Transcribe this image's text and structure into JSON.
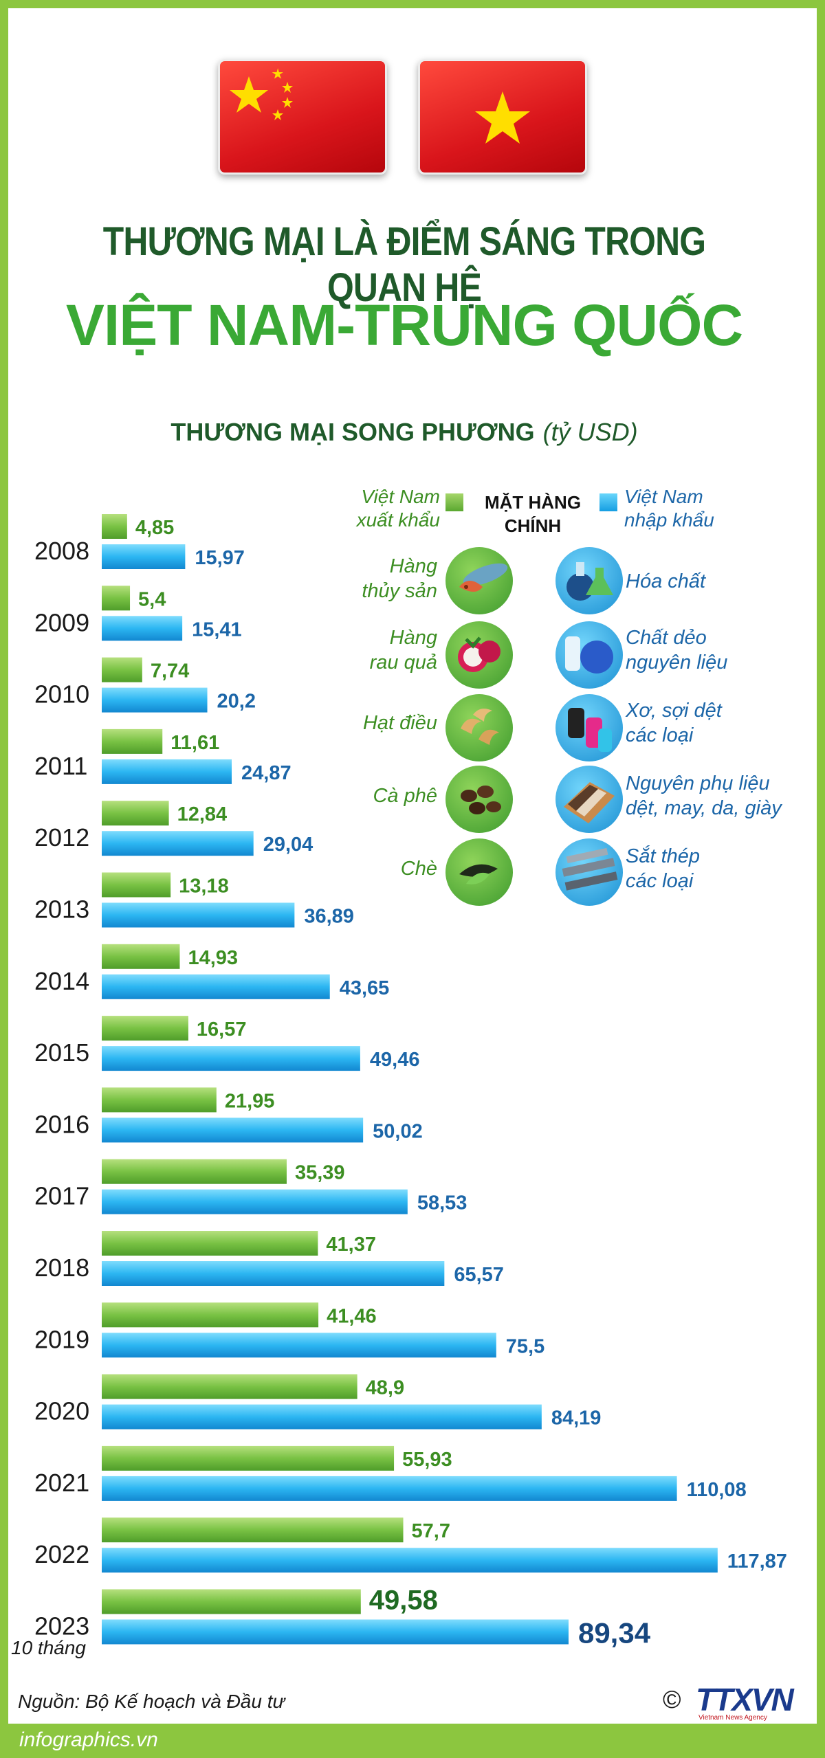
{
  "title": {
    "line1": "THƯƠNG MẠI LÀ ĐIỂM SÁNG TRONG QUAN HỆ",
    "line2": "VIỆT NAM-TRUNG QUỐC"
  },
  "flags": [
    "china-flag",
    "vietnam-flag"
  ],
  "chart_heading": "THƯƠNG MẠI SONG PHƯƠNG",
  "chart_unit": "(tỷ USD)",
  "legend": {
    "export_line1": "Việt Nam",
    "export_line2": "xuất khẩu",
    "import_line1": "Việt Nam",
    "import_line2": "nhập khẩu",
    "main_line1": "MẶT HÀNG",
    "main_line2": "CHÍNH"
  },
  "products": {
    "export": [
      {
        "line1": "Hàng",
        "line2": "thủy sản",
        "icon": "seafood-icon"
      },
      {
        "line1": "Hàng",
        "line2": "rau quả",
        "icon": "fruit-icon"
      },
      {
        "line1": "Hạt điều",
        "line2": "",
        "icon": "cashew-icon"
      },
      {
        "line1": "Cà phê",
        "line2": "",
        "icon": "coffee-icon"
      },
      {
        "line1": "Chè",
        "line2": "",
        "icon": "tea-icon"
      }
    ],
    "import": [
      {
        "line1": "Hóa chất",
        "line2": "",
        "icon": "chemical-flask-icon"
      },
      {
        "line1": "Chất dẻo",
        "line2": "nguyên liệu",
        "icon": "plastic-pellets-icon"
      },
      {
        "line1": "Xơ, sợi dệt",
        "line2": "các loại",
        "icon": "yarn-spools-icon"
      },
      {
        "line1": "Nguyên phụ liệu",
        "line2": "dệt, may, da, giày",
        "icon": "fabric-leather-icon"
      },
      {
        "line1": "Sắt thép",
        "line2": "các loại",
        "icon": "steel-beams-icon"
      }
    ]
  },
  "chart_data": {
    "type": "bar",
    "orientation": "horizontal",
    "categories": [
      "2008",
      "2009",
      "2010",
      "2011",
      "2012",
      "2013",
      "2014",
      "2015",
      "2016",
      "2017",
      "2018",
      "2019",
      "2020",
      "2021",
      "2022",
      "2023"
    ],
    "category_note": "10 tháng",
    "series": [
      {
        "name": "Việt Nam xuất khẩu",
        "color": "#6fbd3f",
        "values": [
          4.85,
          5.4,
          7.74,
          11.61,
          12.84,
          13.18,
          14.93,
          16.57,
          21.95,
          35.39,
          41.37,
          41.46,
          48.9,
          55.93,
          57.7,
          49.58
        ],
        "labels": [
          "4,85",
          "5,4",
          "7,74",
          "11,61",
          "12,84",
          "13,18",
          "14,93",
          "16,57",
          "21,95",
          "35,39",
          "41,37",
          "41,46",
          "48,9",
          "55,93",
          "57,7",
          "49,58"
        ]
      },
      {
        "name": "Việt Nam nhập khẩu",
        "color": "#29b4f0",
        "values": [
          15.97,
          15.41,
          20.2,
          24.87,
          29.04,
          36.89,
          43.65,
          49.46,
          50.02,
          58.53,
          65.57,
          75.5,
          84.19,
          110.08,
          117.87,
          89.34
        ],
        "labels": [
          "15,97",
          "15,41",
          "20,2",
          "24,87",
          "29,04",
          "36,89",
          "43,65",
          "49,46",
          "50,02",
          "58,53",
          "65,57",
          "75,5",
          "84,19",
          "110,08",
          "117,87",
          "89,34"
        ]
      }
    ],
    "title": "THƯƠNG MẠI SONG PHƯƠNG",
    "unit": "tỷ USD",
    "xlim": [
      0,
      125
    ]
  },
  "source": "Nguồn: Bộ Kế hoạch và Đầu tư",
  "copyright": "©",
  "brand": "TTXVN",
  "brand_sub": "Vietnam News Agency",
  "site": "infographics.vn",
  "colors": {
    "frame": "#8cc63f",
    "title_dark": "#1f5a2a",
    "title_green": "#3aa935",
    "export_bar": "#6fbd3f",
    "import_bar": "#29b4f0"
  }
}
